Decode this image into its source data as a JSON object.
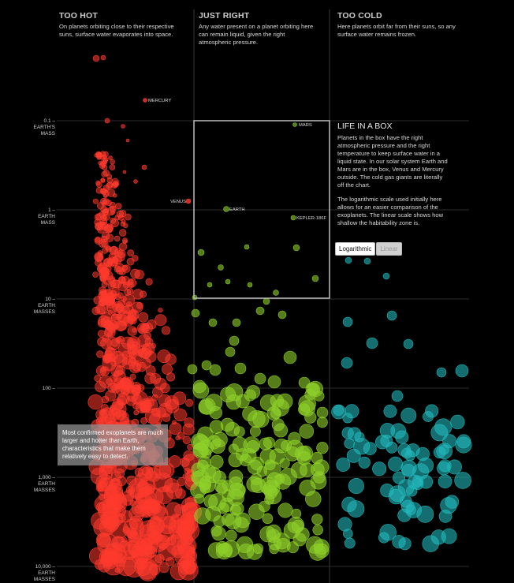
{
  "zones": [
    {
      "title": "TOO HOT",
      "desc": "On planets orbiting close to their respective suns, surface water evaporates into space.",
      "color": "#ff2a2a"
    },
    {
      "title": "JUST RIGHT",
      "desc": "Any water present on a planet orbiting here can remain liquid, given the right atmospheric pressure.",
      "color": "#8fd12a"
    },
    {
      "title": "TOO COLD",
      "desc": "Here planets orbit far from their suns, so any surface water remains frozen.",
      "color": "#1fbcbc"
    }
  ],
  "box": {
    "title": "LIFE IN A BOX",
    "p1": "Planets in the box have the right atmospheric pressure and the right temperature to keep surface water in a liquid state. In our solar system Earth and Mars are in the box, Venus and Mercury outside. The cold gas giants are literally off the chart.",
    "p2": "The logarithmic scale used initially here allows for an easier comparison of the exoplanets. The linear scale shows how shallow the habitability zone is."
  },
  "toggle": {
    "log": "Logarithmic",
    "linear": "Linear"
  },
  "callout": "Most confirmed exoplanets are much larger and hotter than Earth, characteristics that make them relatively easy to detect.",
  "chart_data": {
    "type": "scatter",
    "y_scale": "log",
    "y_ticks": [
      {
        "value": 0.1,
        "label": [
          "0.1 –",
          "EARTH'S",
          "MASS"
        ]
      },
      {
        "value": 1,
        "label": [
          "1 –",
          "EARTH",
          "MASS"
        ]
      },
      {
        "value": 10,
        "label": [
          "10 –",
          "EARTH",
          "MASSES"
        ]
      },
      {
        "value": 100,
        "label": [
          "100 –"
        ]
      },
      {
        "value": 1000,
        "label": [
          "1,000 –",
          "EARTH",
          "MASSES"
        ]
      },
      {
        "value": 10000,
        "label": [
          "10,000 –",
          "EARTH",
          "MASSES"
        ]
      }
    ],
    "labeled_planets": [
      {
        "name": "MERCURY",
        "zone": "hot",
        "mass": 0.055
      },
      {
        "name": "VENUS",
        "zone": "hot",
        "mass": 0.82
      },
      {
        "name": "EARTH",
        "zone": "right",
        "mass": 1.0
      },
      {
        "name": "MARS",
        "zone": "right",
        "mass": 0.107
      },
      {
        "name": "KEPLER-186F",
        "zone": "right",
        "mass": 1.4
      }
    ],
    "colors": {
      "hot": "#ff3b2e",
      "right": "#8fd12a",
      "cold": "#22b8ba"
    }
  }
}
